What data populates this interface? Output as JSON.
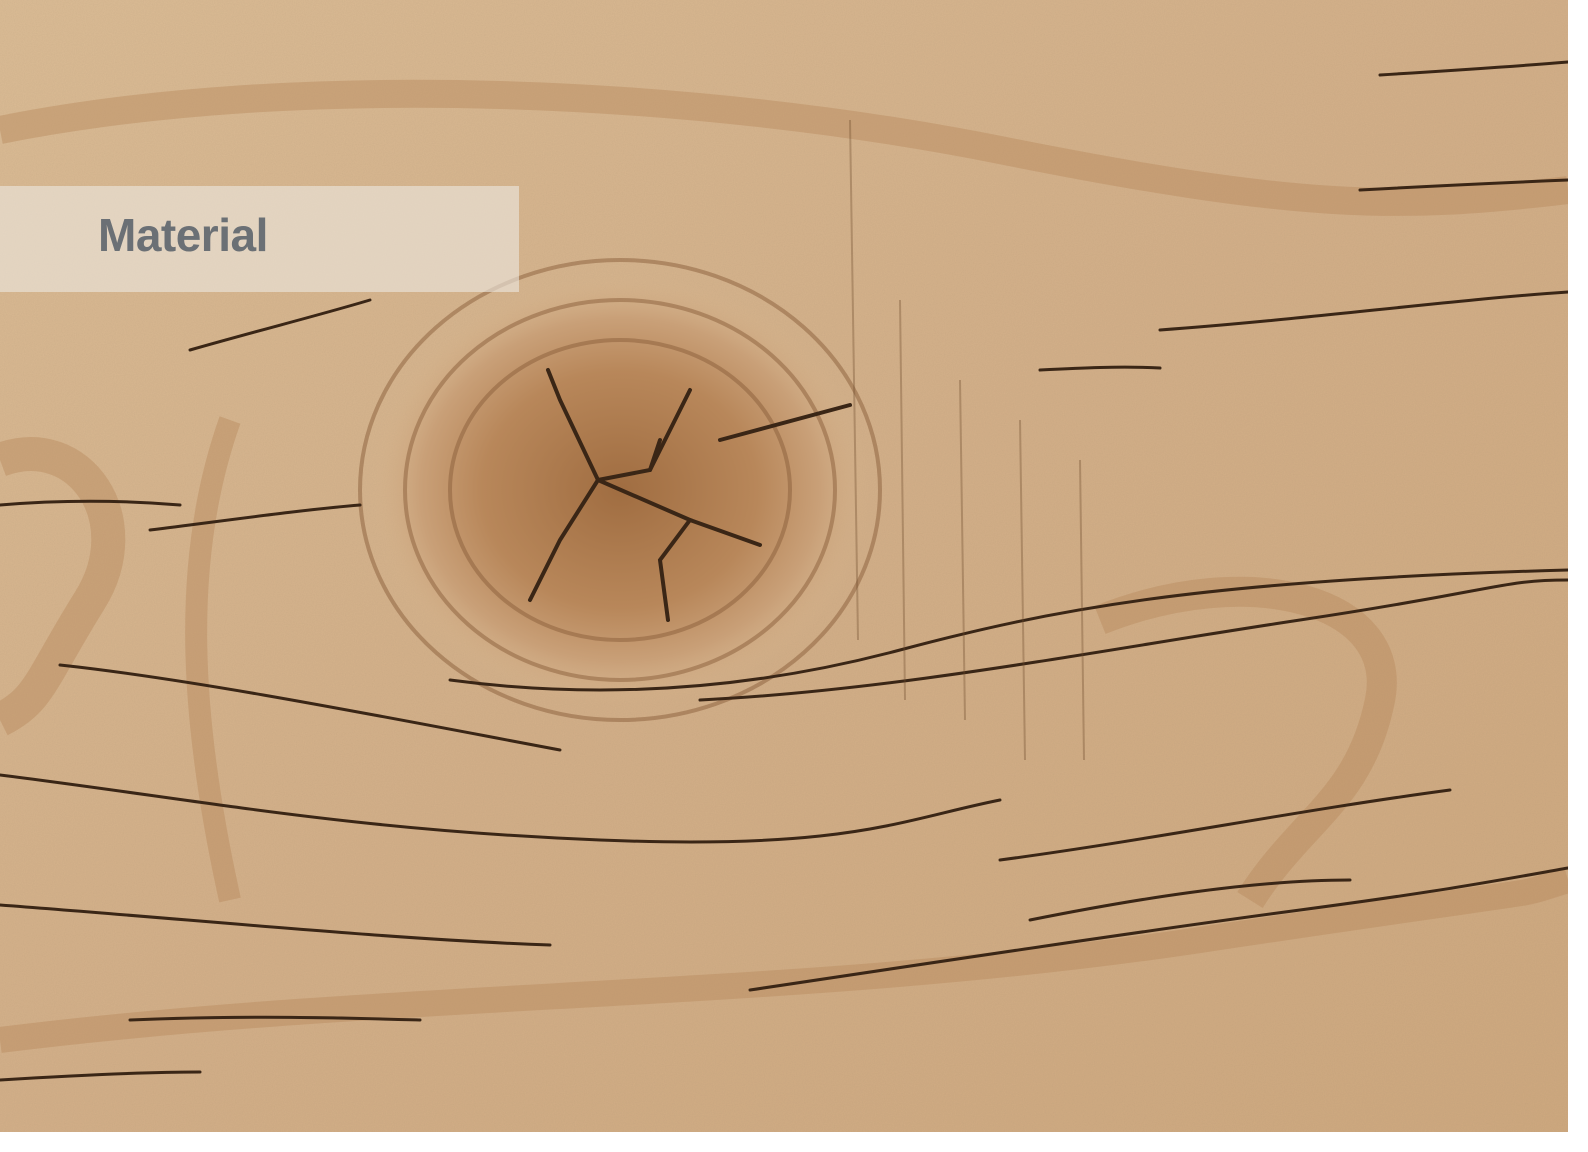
{
  "label": {
    "text": "Material"
  },
  "colors": {
    "wood_base": "#d6b48c",
    "wood_light": "#e6cba4",
    "wood_dark_grain": "#8a5e3a",
    "crack": "#3a2616",
    "knot_core": "#9b6a3f",
    "label_band": "#ece6de",
    "label_text": "#6b7075"
  }
}
